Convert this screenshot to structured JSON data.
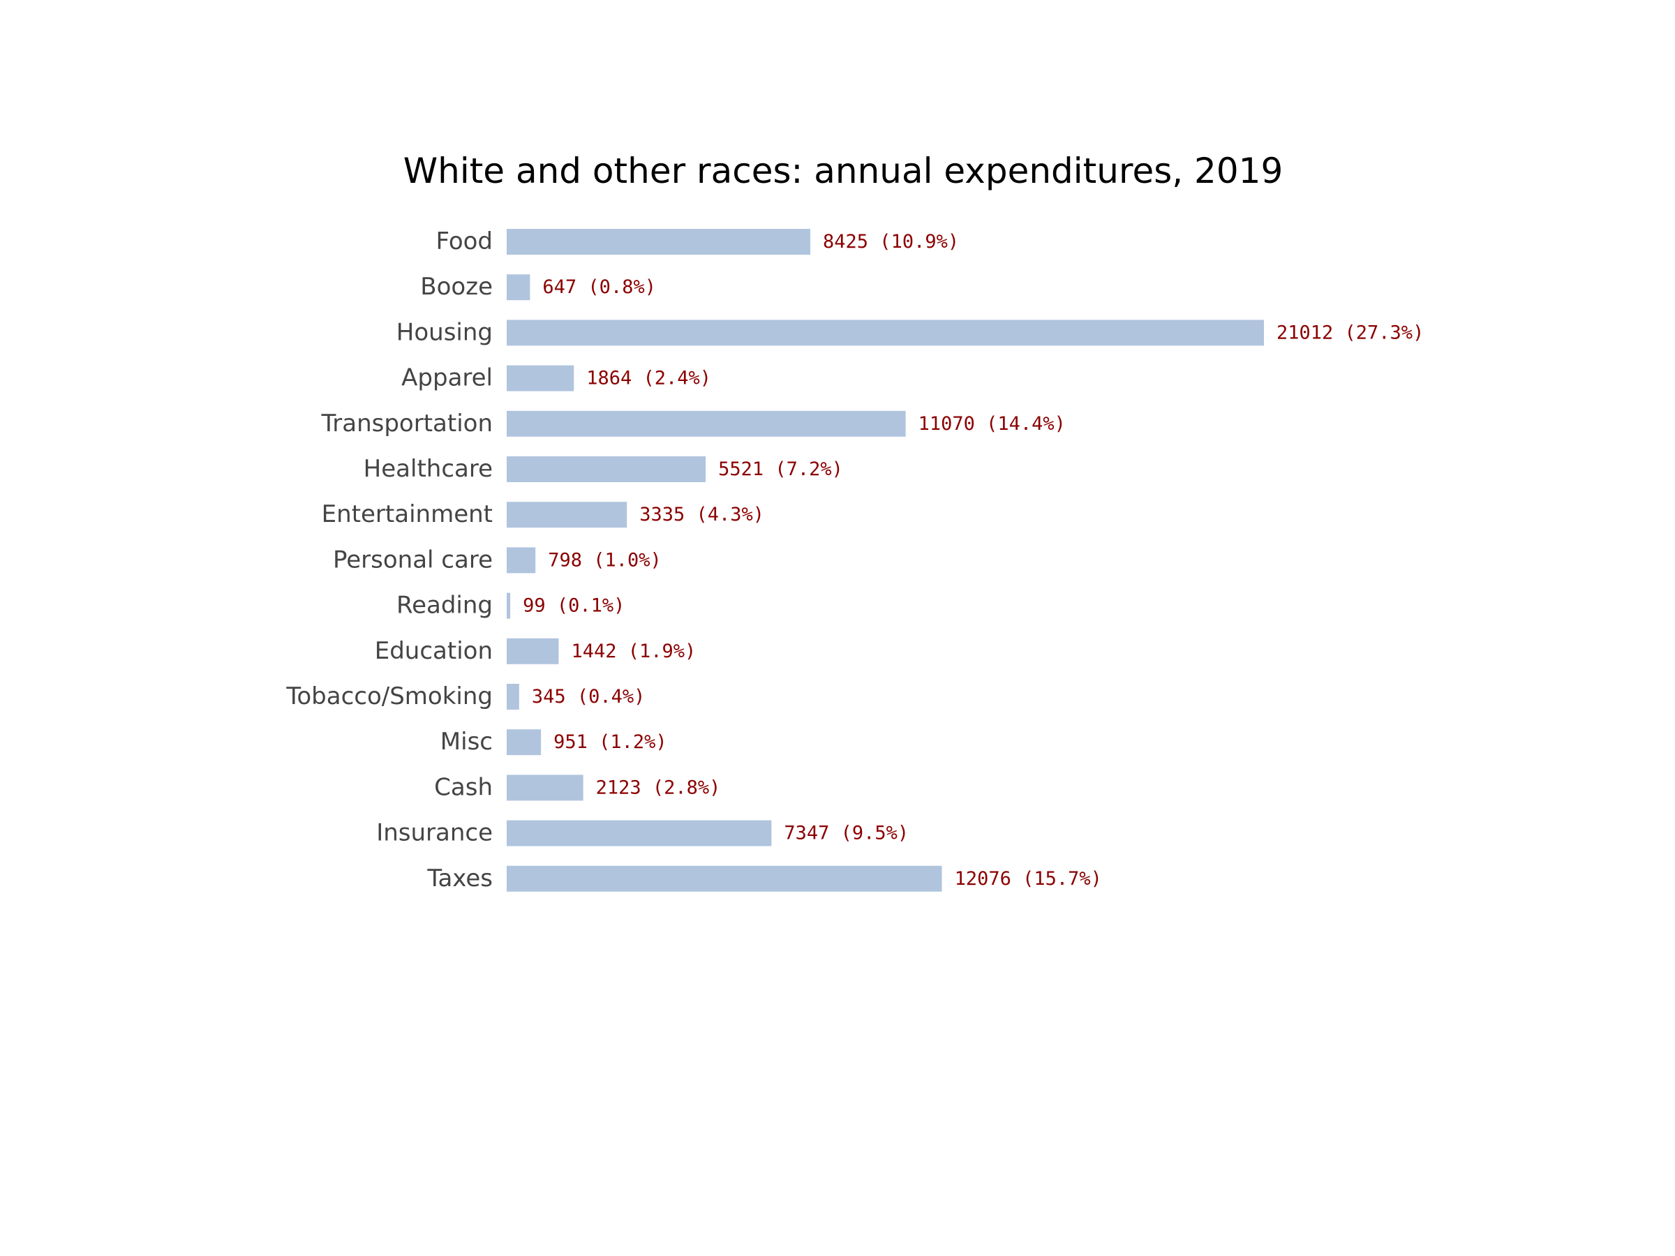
{
  "chart_data": {
    "type": "bar",
    "orientation": "horizontal",
    "title": "White and other races: annual expenditures, 2019",
    "xlabel": "",
    "ylabel": "",
    "grid": false,
    "legend": "none",
    "categories": [
      "Food",
      "Booze",
      "Housing",
      "Apparel",
      "Transportation",
      "Healthcare",
      "Entertainment",
      "Personal care",
      "Reading",
      "Education",
      "Tobacco/Smoking",
      "Misc",
      "Cash",
      "Insurance",
      "Taxes"
    ],
    "values": [
      8425,
      647,
      21012,
      1864,
      11070,
      5521,
      3335,
      798,
      99,
      1442,
      345,
      951,
      2123,
      7347,
      12076
    ],
    "labels": [
      "8425 (10.9%)",
      "647 (0.8%)",
      "21012 (27.3%)",
      "1864 (2.4%)",
      "11070 (14.4%)",
      "5521 (7.2%)",
      "3335 (4.3%)",
      "798 (1.0%)",
      "99 (0.1%)",
      "1442 (1.9%)",
      "345 (0.4%)",
      "951 (1.2%)",
      "2123 (2.8%)",
      "7347 (9.5%)",
      "12076 (15.7%)"
    ],
    "xlim": [
      0,
      21012
    ],
    "colors": {
      "bar": "#b0c4de",
      "value_label": "#8b0000",
      "category_label": "#444444",
      "title": "#000000"
    }
  }
}
